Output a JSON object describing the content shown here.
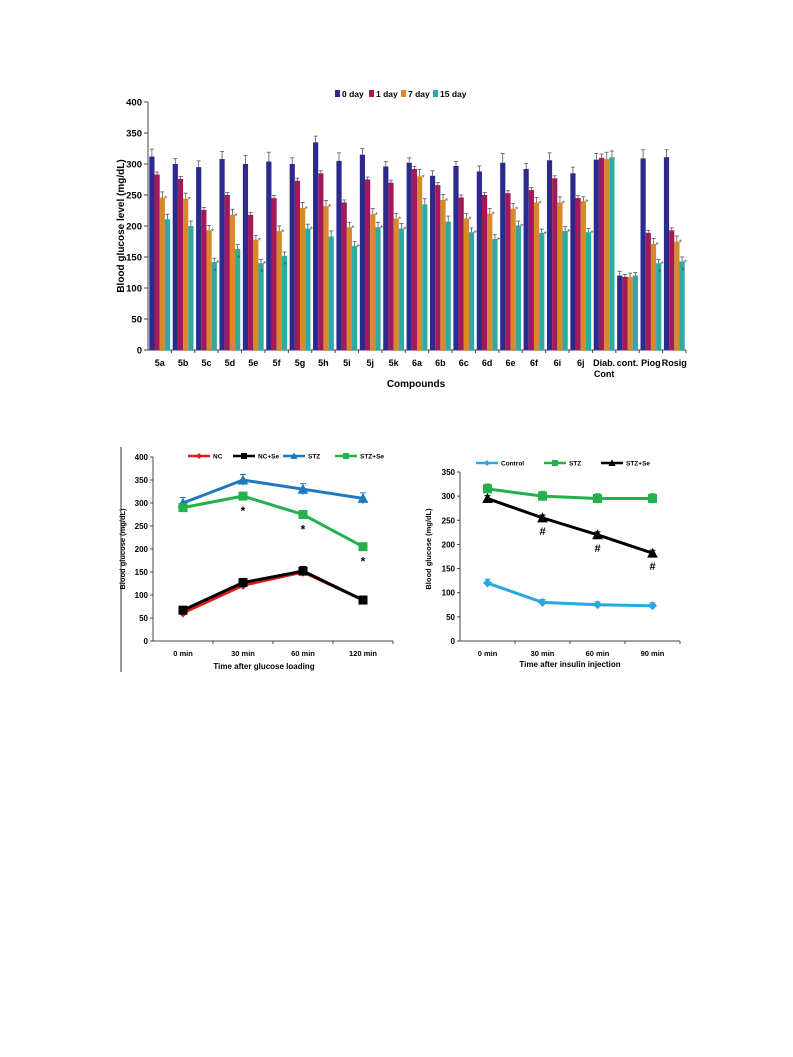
{
  "chart_data": [
    {
      "type": "bar",
      "ylabel": "Blood glucose level (mg/dL)",
      "xlabel": "Compounds",
      "ylim": [
        0,
        400
      ],
      "yticks": [
        0,
        50,
        100,
        150,
        200,
        250,
        300,
        350,
        400
      ],
      "grid": false,
      "legend_position": "top-right",
      "categories": [
        "5a",
        "5b",
        "5c",
        "5d",
        "5e",
        "5f",
        "5g",
        "5h",
        "5i",
        "5j",
        "5k",
        "6a",
        "6b",
        "6c",
        "6d",
        "6e",
        "6f",
        "6i",
        "6j",
        "Diab. Cont",
        "cont.",
        "Piog",
        "Rosig"
      ],
      "series": [
        {
          "name": "0 day",
          "color": "#2c2a8c",
          "values": [
            312,
            300,
            295,
            308,
            300,
            304,
            300,
            335,
            305,
            315,
            296,
            302,
            281,
            297,
            288,
            302,
            292,
            306,
            285,
            307,
            120,
            309,
            311
          ]
        },
        {
          "name": "1 day",
          "color": "#a21a5a",
          "values": [
            283,
            276,
            226,
            250,
            218,
            245,
            273,
            285,
            238,
            275,
            270,
            292,
            266,
            246,
            250,
            253,
            258,
            277,
            245,
            310,
            118,
            189,
            193
          ]
        },
        {
          "name": "7 day",
          "color": "#d68a2a",
          "values": [
            246,
            244,
            193,
            218,
            178,
            192,
            229,
            232,
            198,
            219,
            212,
            280,
            242,
            212,
            220,
            228,
            238,
            238,
            240,
            308,
            118,
            171,
            175
          ]
        },
        {
          "name": "15 day",
          "color": "#2eaaa5",
          "values": [
            211,
            200,
            142,
            163,
            140,
            152,
            196,
            183,
            168,
            198,
            196,
            235,
            207,
            190,
            179,
            201,
            189,
            192,
            190,
            311,
            120,
            140,
            143
          ]
        }
      ],
      "errors": {
        "0 day": [
          12,
          9,
          10,
          12,
          14,
          15,
          10,
          10,
          13,
          10,
          8,
          8,
          8,
          7,
          9,
          15,
          9,
          12,
          10,
          10,
          7,
          14,
          12
        ],
        "1 day": [
          4,
          4,
          4,
          4,
          4,
          4,
          4,
          4,
          4,
          4,
          4,
          4,
          4,
          4,
          4,
          4,
          4,
          4,
          4,
          6,
          4,
          4,
          4
        ],
        "7 day": [
          9,
          9,
          8,
          9,
          7,
          8,
          9,
          9,
          8,
          9,
          8,
          11,
          9,
          8,
          8,
          8,
          8,
          9,
          7,
          11,
          6,
          9,
          9
        ],
        "15 day": [
          8,
          8,
          6,
          7,
          6,
          6,
          7,
          9,
          7,
          8,
          8,
          9,
          9,
          7,
          7,
          7,
          6,
          7,
          6,
          10,
          5,
          6,
          7
        ]
      },
      "significance_marks": {
        "7 day": [
          "*",
          "*",
          "*",
          "*",
          "*",
          "*",
          "*",
          "*",
          "*",
          "*",
          "*",
          "*",
          "*",
          "*",
          "*",
          "*",
          "*",
          "*",
          "*",
          "",
          "",
          "*",
          "*"
        ],
        "15 day": [
          "",
          "",
          "*",
          "",
          "*",
          "",
          "*",
          "",
          "*",
          "*",
          "*",
          "",
          "",
          "*",
          "*",
          "*",
          "*",
          "*",
          "*",
          "",
          "",
          "*",
          "*"
        ],
        "extra": [
          "",
          "",
          "*",
          "*",
          "*",
          "*",
          "",
          "",
          "",
          "",
          "",
          "",
          "",
          "",
          "",
          "",
          "",
          "",
          "",
          "",
          "",
          "*",
          "*"
        ]
      }
    },
    {
      "type": "line",
      "ylabel": "Blood glucose (mg/dL)",
      "xlabel": "Time after glucose loading",
      "categories": [
        "0 min",
        "30 min",
        "60 min",
        "120 min"
      ],
      "ylim": [
        0,
        400
      ],
      "yticks": [
        0,
        50,
        100,
        150,
        200,
        250,
        300,
        350,
        400
      ],
      "grid": false,
      "legend_position": "top",
      "series": [
        {
          "name": "NC",
          "color": "#e01b1b",
          "marker": "diamond",
          "values": [
            61,
            121,
            150,
            89
          ],
          "errors": [
            8,
            8,
            10,
            8
          ]
        },
        {
          "name": "NC+Se",
          "color": "#000000",
          "marker": "square",
          "values": [
            67,
            127,
            152,
            89
          ],
          "errors": [
            8,
            9,
            10,
            8
          ]
        },
        {
          "name": "STZ",
          "color": "#1f78c0",
          "marker": "triangle",
          "values": [
            300,
            350,
            330,
            310
          ],
          "errors": [
            12,
            12,
            12,
            12
          ]
        },
        {
          "name": "STZ+Se",
          "color": "#22b14c",
          "marker": "square",
          "values": [
            290,
            315,
            275,
            205
          ],
          "errors": [
            8,
            8,
            8,
            8
          ]
        }
      ],
      "annotations": [
        "*",
        "*",
        "*"
      ]
    },
    {
      "type": "line",
      "ylabel": "Blood glucose (mg/dL)",
      "xlabel": "Time after insulin injection",
      "categories": [
        "0 min",
        "30 min",
        "60 min",
        "90 min"
      ],
      "ylim": [
        0,
        350
      ],
      "yticks": [
        0,
        50,
        100,
        150,
        200,
        250,
        300,
        350
      ],
      "grid": false,
      "legend_position": "top",
      "series": [
        {
          "name": "Control",
          "color": "#29a8e0",
          "marker": "diamond",
          "values": [
            120,
            80,
            75,
            73
          ],
          "errors": [
            8,
            6,
            6,
            6
          ]
        },
        {
          "name": "STZ",
          "color": "#22b14c",
          "marker": "square",
          "values": [
            315,
            300,
            295,
            295
          ],
          "errors": [
            10,
            10,
            10,
            10
          ]
        },
        {
          "name": "STZ+Se",
          "color": "#000000",
          "marker": "triangle",
          "values": [
            295,
            255,
            220,
            182
          ],
          "errors": [
            6,
            6,
            6,
            6
          ]
        }
      ],
      "annotations": [
        "#",
        "#",
        "#"
      ]
    }
  ]
}
